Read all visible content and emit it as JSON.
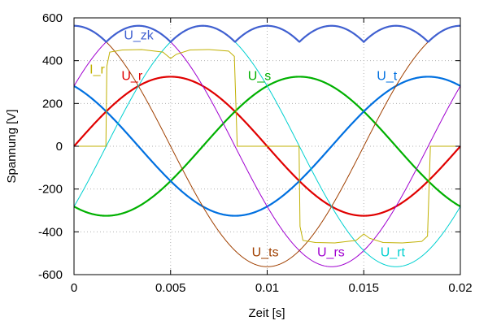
{
  "chart_data": {
    "type": "line",
    "xlabel": "Zeit [s]",
    "ylabel": "Spannung [V]",
    "xlim": [
      0,
      0.02
    ],
    "ylim": [
      -600,
      600
    ],
    "x_ticks": [
      0,
      0.005,
      0.01,
      0.015,
      0.02
    ],
    "x_tick_labels": [
      "0",
      "0.005",
      "0.01",
      "0.015",
      "0.02"
    ],
    "y_ticks": [
      -600,
      -400,
      -200,
      0,
      200,
      400,
      600
    ],
    "y_tick_labels": [
      "-600",
      "-400",
      "-200",
      "0",
      "200",
      "400",
      "600"
    ],
    "grid": true,
    "frequency_hz": 50,
    "series": [
      {
        "name": "U_r",
        "color": "#e00000",
        "kind": "sine",
        "amplitude": 325,
        "phase_deg": 0
      },
      {
        "name": "U_s",
        "color": "#00b000",
        "kind": "sine",
        "amplitude": 325,
        "phase_deg": -120
      },
      {
        "name": "U_t",
        "color": "#0070e0",
        "kind": "sine",
        "amplitude": 325,
        "phase_deg": 120
      },
      {
        "name": "U_rs",
        "color": "#a000d0",
        "kind": "sine",
        "amplitude": 563,
        "phase_deg": 30
      },
      {
        "name": "U_ts",
        "color": "#a04000",
        "kind": "sine",
        "amplitude": 563,
        "phase_deg": 90
      },
      {
        "name": "U_rt",
        "color": "#00d0d0",
        "kind": "sine",
        "amplitude": 563,
        "phase_deg": -30
      },
      {
        "name": "U_zk",
        "color": "#4060d0",
        "kind": "rectified_max",
        "amplitude": 563
      },
      {
        "name": "I_r",
        "color": "#c0b000",
        "kind": "block_current"
      }
    ],
    "labels": [
      {
        "text": "U_zk",
        "x": 0.00335,
        "y": 500,
        "color": "#4060d0"
      },
      {
        "text": "I_r",
        "x": 0.0012,
        "y": 340,
        "color": "#c0b000"
      },
      {
        "text": "U_r",
        "x": 0.003,
        "y": 310,
        "color": "#e00000"
      },
      {
        "text": "U_s",
        "x": 0.0096,
        "y": 310,
        "color": "#00b000"
      },
      {
        "text": "U_t",
        "x": 0.0162,
        "y": 310,
        "color": "#0070e0"
      },
      {
        "text": "U_ts",
        "x": 0.0099,
        "y": -515,
        "color": "#a04000"
      },
      {
        "text": "U_rs",
        "x": 0.0133,
        "y": -515,
        "color": "#a000d0"
      },
      {
        "text": "U_rt",
        "x": 0.0165,
        "y": -515,
        "color": "#00d0d0"
      }
    ]
  }
}
